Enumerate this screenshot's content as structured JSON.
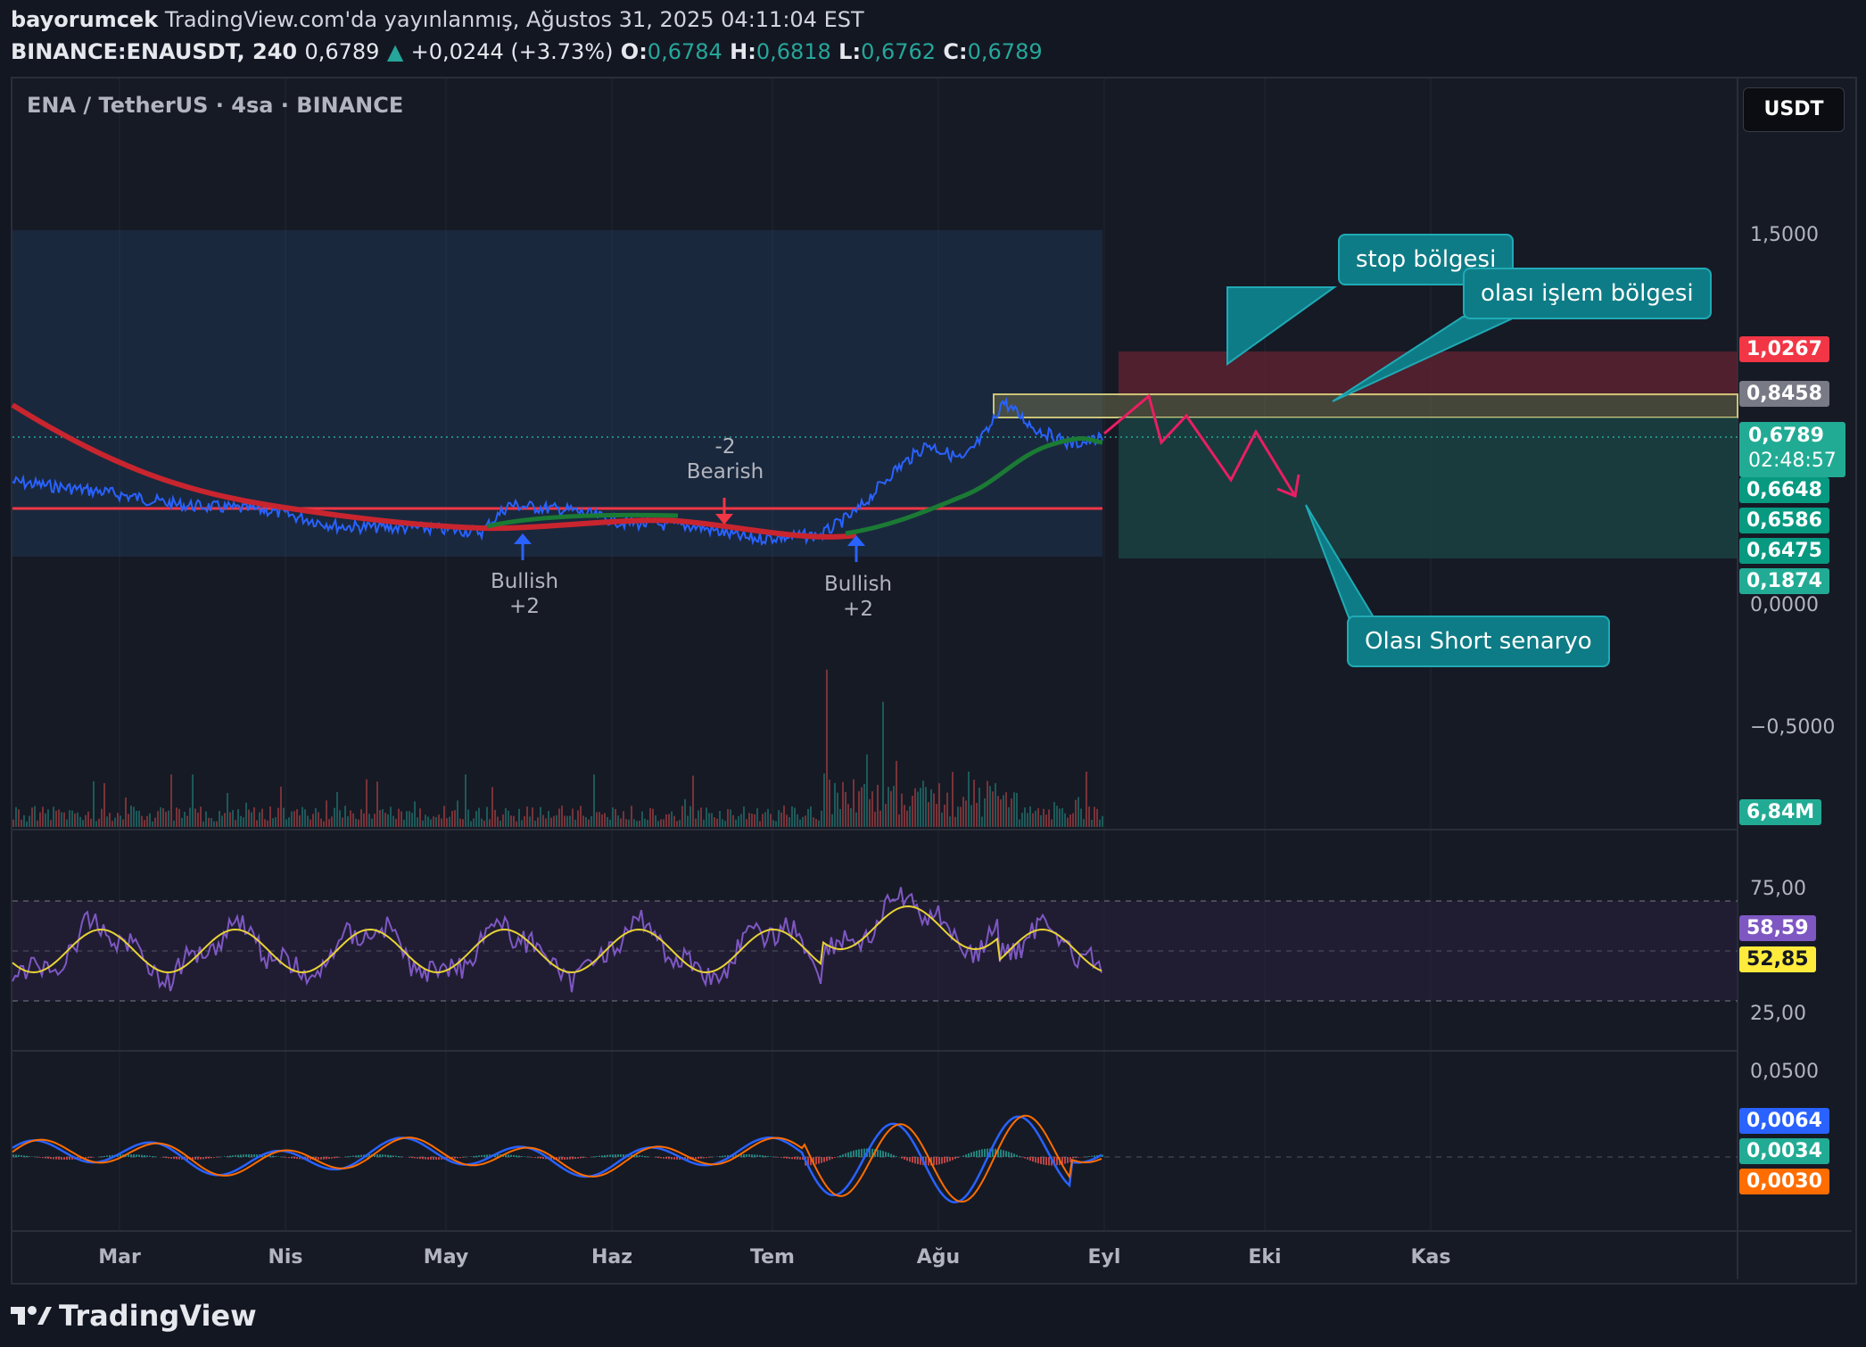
{
  "header": {
    "author": "bayorumcek",
    "published": "TradingView.com'da yayınlanmış, Ağustos 31, 2025 04:11:04 EST",
    "symbol": "BINANCE:ENAUSDT, 240",
    "last": "0,6789",
    "change": "+0,0244 (+3.73%)",
    "open_label": "O:",
    "open": "0,6784",
    "high_label": "H:",
    "high": "0,6818",
    "low_label": "L:",
    "low": "0,6762",
    "close_label": "C:",
    "close": "0,6789"
  },
  "chart": {
    "title": "ENA / TetherUS · 4sa · BINANCE",
    "currency": "USDT",
    "price_axis": [
      "1,5000",
      "0,0000",
      "−0,5000"
    ],
    "rsi_axis": [
      "75,00",
      "25,00"
    ],
    "macd_axis": [
      "0,0500"
    ],
    "months": [
      "Mar",
      "Nis",
      "May",
      "Haz",
      "Tem",
      "Ağu",
      "Eyl",
      "Eki",
      "Kas"
    ],
    "tags": {
      "stop": "1,0267",
      "entry": "0,8458",
      "last": "0,6789",
      "countdown": "02:48:57",
      "ma1": "0,6648",
      "ma2": "0,6586",
      "ma3": "0,6475",
      "target": "0,1874",
      "volume": "6,84M",
      "rsi": "58,59",
      "rsi_ma": "52,85",
      "macd": "0,0064",
      "hist": "0,0034",
      "signal": "0,0030"
    },
    "signals": [
      {
        "line1": "Bullish",
        "line2": "+2"
      },
      {
        "line1": "-2",
        "line2": "Bearish"
      },
      {
        "line1": "Bullish",
        "line2": "+2"
      }
    ],
    "callouts": {
      "stop": "stop bölgesi",
      "entry": "olası işlem bölgesi",
      "short": "Olası Short senaryo"
    },
    "colors": {
      "bull": "#26a69a",
      "bear": "#ef5350",
      "stop_tag": "#f23645",
      "entry_tag": "#787b86",
      "last_tag": "#22ab94",
      "ma_tag": "#089981",
      "rsi_tag": "#7e57c2",
      "rsi_ma_tag": "#ffeb3b",
      "macd_tag": "#2962ff",
      "signal_tag": "#ff6d00"
    }
  },
  "footer": {
    "brand": "TradingView"
  }
}
